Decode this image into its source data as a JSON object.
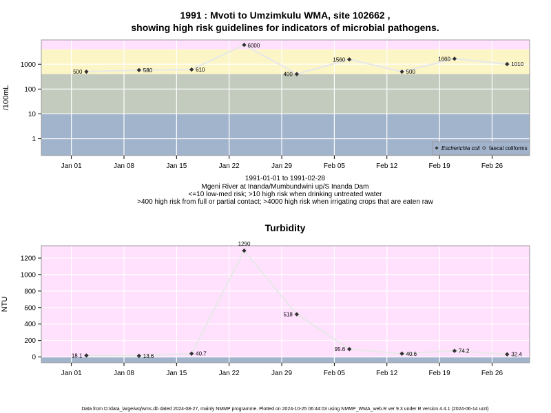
{
  "figure": {
    "title_line1": "1991 : Mvoti to Umzimkulu WMA, site 102662 ,",
    "title_line2": "showing high risk guidelines for indicators of microbial pathogens.",
    "subtitle": [
      "1991-01-01 to 1991-02-28",
      "Mgeni River at Inanda/Mumbundwini up/S Inanda Dam",
      "<=10 low-med risk; >10 high risk when drinking untreated water",
      ">400 high risk from full or partial contact; >4000 high risk when irrigating crops that are eaten raw"
    ],
    "footer": "Data from D:/data_large/wq/wms.db dated 2024-08-27, mainly NMMP programme. Plotted on 2024-10-25 06:44:03 using NMMP_WMA_web.R ver 9.3 under R version 4.4.1 (2024-06-14 ucrt)"
  },
  "colors": {
    "band_low": "#a2b3cc",
    "band_mid": "#c2cbbd",
    "band_high": "#fcf5c6",
    "band_top": "#ffe0fd",
    "turbidity_bg": "#ffe0fd",
    "turbidity_base": "#a2b3cc",
    "line": "#e8e8e8",
    "marker": "#333333",
    "grid": "#ffffff",
    "frame": "#999999"
  },
  "chart_data": [
    {
      "type": "scatter",
      "y_scale": "log10",
      "ylabel": "/100mL",
      "xlabel": "",
      "xlim": [
        "1990-12-28",
        "1991-03-03"
      ],
      "ylim": [
        0.21,
        9500
      ],
      "y_ticks": [
        1,
        10,
        100,
        1000
      ],
      "y_tick_labels": [
        "1",
        "10",
        "100",
        "1000"
      ],
      "x_ticks": [
        "1991-01-01",
        "1991-01-08",
        "1991-01-15",
        "1991-01-22",
        "1991-01-29",
        "1991-02-05",
        "1991-02-12",
        "1991-02-19",
        "1991-02-26"
      ],
      "x_tick_labels": [
        "Jan 01",
        "Jan 08",
        "Jan 15",
        "Jan 22",
        "Jan 29",
        "Feb 05",
        "Feb 12",
        "Feb 19",
        "Feb 26"
      ],
      "grid": true,
      "thresholds": [
        10,
        400,
        4000
      ],
      "legend_position": "bottom-right",
      "series": [
        {
          "name": "Escherichia coli",
          "x": [
            "1991-01-03",
            "1991-01-10",
            "1991-01-17",
            "1991-01-24",
            "1991-01-31",
            "1991-02-07",
            "1991-02-14",
            "1991-02-21",
            "1991-02-28"
          ],
          "values": [
            500,
            580,
            610,
            6000,
            400,
            1560,
            500,
            1660,
            1010
          ],
          "labels": [
            "500",
            "580",
            "610",
            "6000",
            "400",
            "1560",
            "500",
            "1660",
            "1010"
          ]
        },
        {
          "name": "faecal coliforms",
          "x": [],
          "values": []
        }
      ]
    },
    {
      "type": "scatter",
      "title": "Turbidity",
      "ylabel": "NTU",
      "xlabel": "",
      "xlim": [
        "1990-12-28",
        "1991-03-03"
      ],
      "ylim": [
        -70,
        1350
      ],
      "y_ticks": [
        0,
        200,
        400,
        600,
        800,
        1000,
        1200
      ],
      "y_tick_labels": [
        "0",
        "200",
        "400",
        "600",
        "800",
        "1000",
        "1200"
      ],
      "x_ticks": [
        "1991-01-01",
        "1991-01-08",
        "1991-01-15",
        "1991-01-22",
        "1991-01-29",
        "1991-02-05",
        "1991-02-12",
        "1991-02-19",
        "1991-02-26"
      ],
      "x_tick_labels": [
        "Jan 01",
        "Jan 08",
        "Jan 15",
        "Jan 22",
        "Jan 29",
        "Feb 05",
        "Feb 12",
        "Feb 19",
        "Feb 26"
      ],
      "grid": true,
      "series": [
        {
          "x": [
            "1991-01-03",
            "1991-01-10",
            "1991-01-17",
            "1991-01-24",
            "1991-01-31",
            "1991-02-07",
            "1991-02-14",
            "1991-02-21",
            "1991-02-28"
          ],
          "values": [
            18.1,
            13.6,
            40.7,
            1290,
            518,
            95.6,
            40.6,
            74.2,
            32.4
          ],
          "labels": [
            "18.1",
            "13.6",
            "40.7",
            "1290",
            "518",
            "95.6",
            "40.6",
            "74.2",
            "32.4"
          ]
        }
      ]
    }
  ]
}
